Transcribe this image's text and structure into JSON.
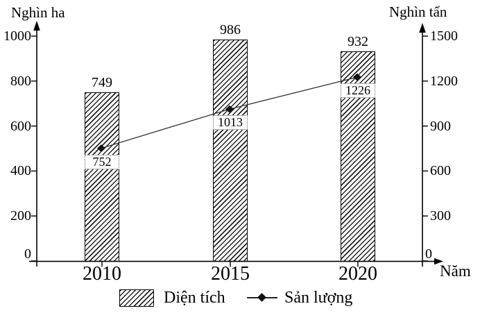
{
  "chart_data": {
    "type": "combo",
    "title": "",
    "categories": [
      "2010",
      "2015",
      "2020"
    ],
    "series": [
      {
        "name": "Diện tích",
        "type": "bar",
        "axis": "left",
        "values": [
          749,
          986,
          932
        ]
      },
      {
        "name": "Sản lượng",
        "type": "line",
        "axis": "right",
        "values": [
          752,
          1013,
          1226
        ]
      }
    ],
    "left_axis": {
      "label": "Nghìn ha",
      "ticks": [
        0,
        200,
        400,
        600,
        800,
        1000
      ],
      "range": [
        0,
        1000
      ]
    },
    "right_axis": {
      "label": "Nghìn tấn",
      "ticks": [
        0,
        300,
        600,
        900,
        1200,
        1500
      ],
      "range": [
        0,
        1500
      ]
    },
    "x_axis": {
      "label": "Năm"
    },
    "legend": {
      "position": "bottom",
      "entries": [
        "Diện tích",
        "Sản lượng"
      ]
    },
    "grid": false,
    "colors": {
      "bar_fill": "#ffffff",
      "hatch": "#222222",
      "line": "#333333",
      "marker": "#111111",
      "text": "#000000",
      "axis": "#000000"
    }
  }
}
